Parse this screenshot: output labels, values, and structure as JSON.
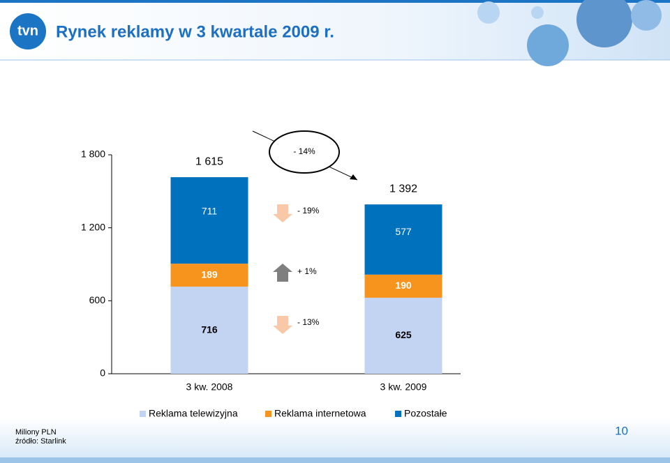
{
  "header": {
    "logo": "tvn",
    "title": "Rynek reklamy w 3 kwartale 2009 r."
  },
  "chart_data": {
    "type": "stacked-bar",
    "categories": [
      "3 kw. 2008",
      "3 kw. 2009"
    ],
    "series": [
      {
        "name": "Reklama telewizyjna",
        "color": "#c3d3f2",
        "values": [
          716,
          625
        ]
      },
      {
        "name": "Reklama internetowa",
        "color": "#f7941d",
        "values": [
          189,
          190
        ]
      },
      {
        "name": "Pozostałe",
        "color": "#0071bc",
        "values": [
          711,
          577
        ]
      }
    ],
    "totals": {
      "values": [
        1615,
        1392
      ],
      "value_labels": [
        "1 615",
        "1 392"
      ]
    },
    "annotations": [
      "- 14%",
      "- 19%",
      "+ 1%",
      "- 13%"
    ],
    "ylim": [
      0,
      1800
    ],
    "yticks": [
      0,
      600,
      {
        "value": 1200,
        "label": "1 200"
      },
      {
        "value": 1800,
        "label": "1 800"
      }
    ]
  },
  "footer": {
    "unit": "Miliony PLN",
    "source": "źródło: Starlink",
    "page": "10"
  }
}
